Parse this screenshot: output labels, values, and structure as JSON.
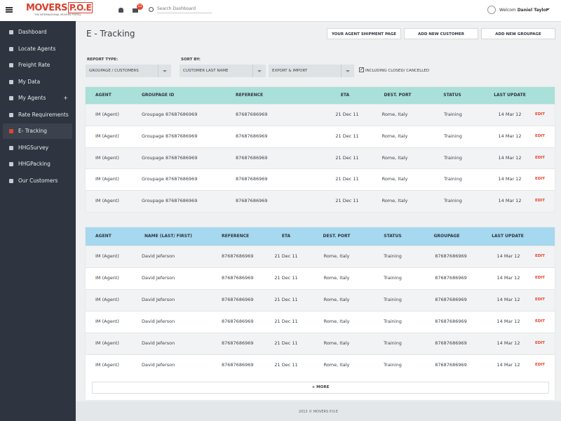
{
  "header": {
    "logo_main": "MOVERS",
    "logo_accent": "P.O.E",
    "tagline": "THE INTERNATIONAL MOVERS PORTAL",
    "notification_count": "12",
    "search_placeholder": "Search Dashboard",
    "user_greeting": "Welcom",
    "user_name": "Daniel Taylor"
  },
  "sidebar": {
    "items": [
      "Dashboard",
      "Locate Agents",
      "Freight Rate",
      "My Data",
      "My Agents",
      "Rate Requirements",
      "E- Tracking",
      "HHGSurvey",
      "HHGPacking",
      "Our Customers"
    ],
    "active": 6,
    "toggle": {
      "index": 4,
      "text": "+"
    }
  },
  "page": {
    "title": "E - Tracking",
    "buttons": [
      "YOUR AGENT SHIPMENT PAGE",
      "ADD NEW CUSTOMER",
      "ADD NEW GROUPAGE"
    ],
    "filters": {
      "report_type_label": "REPORT TYPE:",
      "report_type": "GROUPAGE / CUSTOMERS",
      "sort_by_label": "SORT BY:",
      "sort_by": [
        "CUSTOMER LAST NAME",
        "EXPORT & IMPORT"
      ],
      "checkbox": "INCLUDING CLOSED/ CANCELLED",
      "checkbox_checked": true
    }
  },
  "tables": [
    {
      "header_color": "#a9e0d9",
      "columns": [
        "AGENT",
        "GROUPAGE ID",
        "REFERENCE",
        "ETA",
        "DEST. PORT",
        "STATUS",
        "LAST UPDATE"
      ],
      "rows": [
        [
          "IM (Agent)",
          "Groupage 87687686969",
          "87687686969",
          "21 Dec 11",
          "Rome, Italy",
          "Training",
          "14 Mar 12",
          "EDIT"
        ],
        [
          "IM (Agent)",
          "Groupage 87687686969",
          "87687686969",
          "21 Dec 11",
          "Rome, Italy",
          "Training",
          "14 Mar 12",
          "EDIT"
        ],
        [
          "IM (Agent)",
          "Groupage 87687686969",
          "87687686969",
          "21 Dec 11",
          "Rome, Italy",
          "Training",
          "14 Mar 12",
          "EDIT"
        ],
        [
          "IM (Agent)",
          "Groupage 87687686969",
          "87687686969",
          "21 Dec 11",
          "Rome, Italy",
          "Training",
          "14 Mar 12",
          "EDIT"
        ],
        [
          "IM (Agent)",
          "Groupage 87687686969",
          "87687686969",
          "21 Dec 11",
          "Rome, Italy",
          "Training",
          "14 Mar 12",
          "EDIT"
        ]
      ]
    },
    {
      "header_color": "#a6d8ef",
      "columns": [
        "AGENT",
        "NAME (LAST/ FIRST)",
        "REFERENCE",
        "ETA",
        "DEST. PORT",
        "STATUS",
        "GROUPAGE",
        "LAST UPDATE"
      ],
      "rows": [
        [
          "IM (Agent)",
          "David Jeferson",
          "87687686969",
          "21 Dec 11",
          "Rome, Italy",
          "Training",
          "87687686969",
          "14 Mar 12",
          "EDIT"
        ],
        [
          "IM (Agent)",
          "David Jeferson",
          "87687686969",
          "21 Dec 11",
          "Rome, Italy",
          "Training",
          "87687686969",
          "14 Mar 12",
          "EDIT"
        ],
        [
          "IM (Agent)",
          "David Jeferson",
          "87687686969",
          "21 Dec 11",
          "Rome, Italy",
          "Training",
          "87687686969",
          "14 Mar 12",
          "EDIT"
        ],
        [
          "IM (Agent)",
          "David Jeferson",
          "87687686969",
          "21 Dec 11",
          "Rome, Italy",
          "Training",
          "87687686969",
          "14 Mar 12",
          "EDIT"
        ],
        [
          "IM (Agent)",
          "David Jeferson",
          "87687686969",
          "21 Dec 11",
          "Rome, Italy",
          "Training",
          "87687686969",
          "14 Mar 12",
          "EDIT"
        ],
        [
          "IM (Agent)",
          "David Jeferson",
          "87687686969",
          "21 Dec 11",
          "Rome, Italy",
          "Training",
          "87687686969",
          "14 Mar 12",
          "EDIT"
        ]
      ]
    }
  ],
  "more_button": "+ MORE",
  "footer": "2013 © MOVERS P.O.E"
}
